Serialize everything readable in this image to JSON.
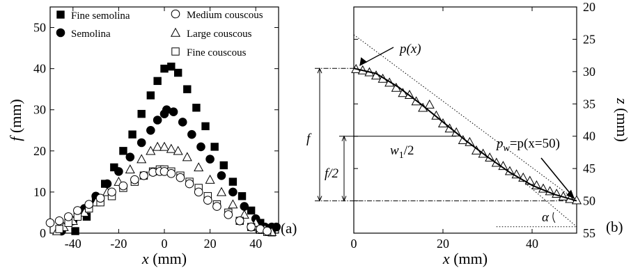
{
  "chart_data": [
    {
      "type": "scatter",
      "panel_label": "(a)",
      "xlabel": {
        "var": "x",
        "unit": " (mm)"
      },
      "ylabel": {
        "var": "f",
        "unit": " (mm)"
      },
      "xlim": [
        -50,
        50
      ],
      "ylim": [
        0,
        55
      ],
      "xticks": [
        -40,
        -20,
        0,
        20,
        40
      ],
      "xtick_labels": [
        "-40",
        "-20",
        "0",
        "20",
        "40"
      ],
      "yticks": [
        0,
        10,
        20,
        30,
        40,
        50
      ],
      "ytick_labels": [
        "0",
        "10",
        "20",
        "30",
        "40",
        "50"
      ],
      "legend": [
        "Fine semolina",
        "Semolina",
        "Medium couscous",
        "Large couscous",
        "Fine couscous"
      ],
      "series": [
        {
          "name": "Fine semolina",
          "marker": "square-filled",
          "x": [
            -39,
            -34,
            -30,
            -26,
            -22,
            -18,
            -14,
            -10,
            -6,
            -3,
            0,
            3,
            6,
            10,
            14,
            18,
            22,
            26,
            30,
            34,
            38,
            42,
            45,
            47
          ],
          "y": [
            0.5,
            4,
            8,
            12,
            16,
            20,
            24,
            29,
            33.5,
            37,
            40,
            40.5,
            39,
            35,
            30.5,
            26,
            21,
            16.5,
            12.5,
            9,
            5.5,
            2.5,
            1,
            0.2
          ]
        },
        {
          "name": "Semolina",
          "marker": "circle-filled",
          "x": [
            -45,
            -40,
            -35,
            -30,
            -25,
            -20,
            -15,
            -10,
            -6,
            -3,
            0,
            1,
            4,
            8,
            12,
            16,
            20,
            25,
            30,
            35,
            40,
            44,
            47,
            49
          ],
          "y": [
            0.5,
            3,
            6,
            9,
            12,
            15,
            18.5,
            22,
            25,
            27.5,
            29,
            30,
            29.5,
            27,
            24,
            21,
            18,
            14,
            10,
            6.5,
            3.5,
            1.5,
            1.5,
            1.5
          ]
        },
        {
          "name": "Large couscous",
          "marker": "triangle-open",
          "x": [
            -47,
            -44,
            -40,
            -35,
            -30,
            -25,
            -20,
            -15,
            -10,
            -6,
            -3,
            0,
            3,
            6,
            10,
            15,
            20,
            25,
            30,
            35,
            40,
            44,
            47
          ],
          "y": [
            0.5,
            1.5,
            3,
            5,
            7.5,
            10,
            12.5,
            15.5,
            18,
            20,
            21,
            21,
            20.5,
            20,
            18.5,
            16,
            13,
            10,
            7,
            4.5,
            2.5,
            1,
            0.3
          ]
        },
        {
          "name": "Fine couscous",
          "marker": "square-open",
          "x": [
            -46,
            -42,
            -38,
            -33,
            -28,
            -23,
            -18,
            -13,
            -9,
            -5,
            -2,
            0,
            3,
            7,
            11,
            15,
            19,
            23,
            28,
            33,
            38,
            42,
            45
          ],
          "y": [
            1,
            2.5,
            4,
            6,
            7.5,
            9,
            11,
            12.5,
            14,
            15,
            15.5,
            15.5,
            15,
            14,
            12.5,
            11,
            9,
            7,
            5,
            3,
            1.5,
            0.8,
            0.3
          ]
        },
        {
          "name": "Medium couscous",
          "marker": "circle-open",
          "x": [
            -50,
            -46,
            -42,
            -38,
            -33,
            -28,
            -23,
            -18,
            -13,
            -9,
            -5,
            -2,
            0,
            3,
            7,
            11,
            15,
            19,
            23,
            28,
            33,
            38,
            42,
            45
          ],
          "y": [
            2.5,
            3,
            4,
            5.5,
            7,
            8.5,
            10,
            11.5,
            13,
            14,
            14.8,
            15,
            15,
            14.5,
            13.5,
            12,
            10,
            8,
            6.5,
            4.5,
            3,
            1.5,
            1,
            0.5
          ]
        }
      ]
    },
    {
      "type": "scatter",
      "panel_label": "(b)",
      "xlabel": {
        "var": "x",
        "unit": " (mm)"
      },
      "ylabel": {
        "var": "z",
        "unit": " (mm)"
      },
      "xlim": [
        0,
        50
      ],
      "ylim": [
        55,
        20
      ],
      "y_axis_side": "right",
      "y_inverted": true,
      "xticks": [
        0,
        20,
        40
      ],
      "xtick_labels": [
        "0",
        "20",
        "40"
      ],
      "yticks": [
        20,
        25,
        30,
        35,
        40,
        45,
        50,
        55
      ],
      "ytick_labels": [
        "20",
        "25",
        "30",
        "35",
        "40",
        "45",
        "50",
        "55"
      ],
      "series": [
        {
          "marker": "triangle-open",
          "x": [
            0.5,
            2,
            3.5,
            5,
            6.5,
            8,
            9.5,
            11,
            12.5,
            14,
            15.5,
            17,
            18.5,
            20,
            21.5,
            23,
            24.5,
            26,
            27.5,
            29,
            30.5,
            32,
            33.5,
            35,
            36.5,
            38,
            39.5,
            41,
            42.5,
            44,
            45.5,
            47,
            48.5,
            50
          ],
          "y": [
            29.6,
            29.8,
            30.1,
            30.6,
            31.1,
            31.7,
            32.5,
            33.3,
            33.6,
            34.6,
            35.6,
            35.1,
            36.8,
            38,
            38.8,
            39.4,
            40.6,
            40.9,
            42.2,
            42.7,
            43.3,
            44.1,
            44.6,
            45.4,
            45.9,
            46.4,
            46.9,
            47.6,
            48.1,
            48.5,
            48.9,
            49.3,
            49.7,
            49.9
          ]
        },
        {
          "name": "fit",
          "marker": "none",
          "x": [
            0,
            5,
            10,
            15,
            20,
            25,
            30,
            35,
            40,
            45,
            50
          ],
          "y": [
            29.5,
            30.3,
            32.4,
            35,
            37.8,
            40.6,
            43.2,
            45.6,
            47.6,
            49,
            50
          ]
        }
      ],
      "annotations": {
        "p_label": "p(x)",
        "pw_sub": "w",
        "pw_text": "=p(x=50)",
        "f_label": "f",
        "f_half_label": "f/2",
        "w_label": "w",
        "w_sub": "1",
        "w_tail": "/2",
        "alpha_label": "α"
      }
    }
  ]
}
